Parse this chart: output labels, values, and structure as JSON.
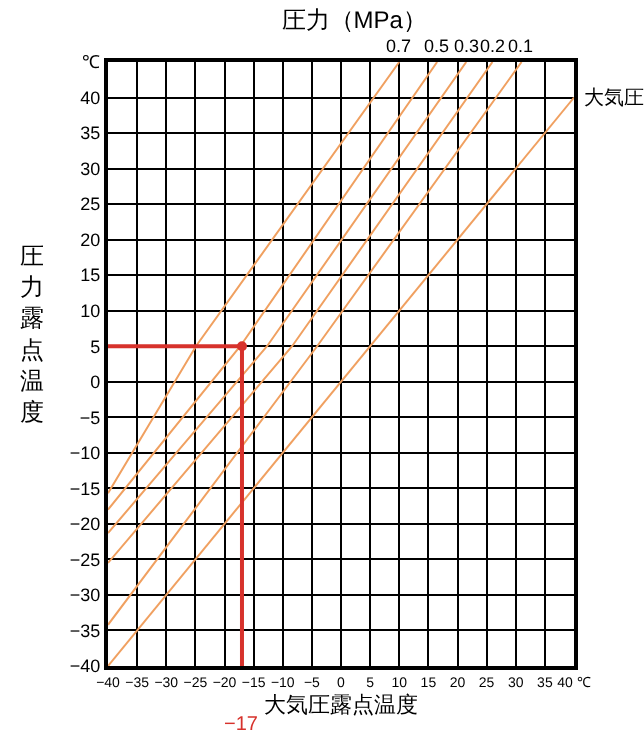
{
  "chart_data": {
    "type": "line",
    "title": "圧力（MPa）",
    "xlabel": "大気圧露点温度",
    "ylabel": "圧力露点温度",
    "series": [
      {
        "name": "0.7",
        "color": "#f0a060",
        "x": [
          -40,
          -24.9,
          10
        ],
        "values": [
          -15.7,
          5,
          45
        ]
      },
      {
        "name": "0.5",
        "color": "#f0a060",
        "x": [
          -40,
          -17.3,
          16.5
        ],
        "values": [
          -18,
          5,
          45
        ]
      },
      {
        "name": "0.3",
        "color": "#f0a060",
        "x": [
          -40,
          -12.7,
          21.5
        ],
        "values": [
          -21.3,
          5,
          45
        ]
      },
      {
        "name": "0.2",
        "color": "#f0a060",
        "x": [
          -40,
          -8.4,
          26
        ],
        "values": [
          -25.5,
          5,
          45
        ]
      },
      {
        "name": "0.1",
        "color": "#f0a060",
        "x": [
          -40,
          -4.1,
          31
        ],
        "values": [
          -34.2,
          5,
          45
        ]
      },
      {
        "name": "大気圧",
        "color": "#f0a060",
        "x": [
          -40,
          40
        ],
        "values": [
          -40,
          40
        ]
      },
      {
        "color": "#d7322c",
        "x": [
          -40,
          -17
        ],
        "values": [
          5,
          5
        ]
      },
      {
        "color": "#d7322c",
        "x": [
          -17,
          -17
        ],
        "values": [
          5,
          -40
        ]
      },
      {
        "type": "scatter",
        "marker": "circle",
        "color": "#d7322c",
        "x": [
          -17
        ],
        "values": [
          5
        ]
      }
    ],
    "annotations": [
      {
        "text": "−17",
        "x": -17,
        "y": -40
      }
    ],
    "xlim": [
      -40,
      40
    ],
    "ylim": [
      -40,
      45
    ],
    "xticks": [
      {
        "value": -40,
        "label": "−40"
      },
      {
        "value": -35,
        "label": "−35"
      },
      {
        "value": -30,
        "label": "−30"
      },
      {
        "value": -25,
        "label": "−25"
      },
      {
        "value": -20,
        "label": "−20"
      },
      {
        "value": -15,
        "label": "−15"
      },
      {
        "value": -10,
        "label": "−10"
      },
      {
        "value": -5,
        "label": "−5"
      },
      0,
      5,
      10,
      15,
      20,
      25,
      30,
      35,
      {
        "value": 40,
        "label": "40 ℃"
      }
    ],
    "yticks": [
      {
        "value": -40,
        "label": "−40"
      },
      {
        "value": -35,
        "label": "−35"
      },
      {
        "value": -30,
        "label": "−30"
      },
      {
        "value": -25,
        "label": "−25"
      },
      {
        "value": -20,
        "label": "−20"
      },
      {
        "value": -15,
        "label": "−15"
      },
      {
        "value": -10,
        "label": "−10"
      },
      {
        "value": -5,
        "label": "−5"
      },
      0,
      5,
      10,
      15,
      20,
      25,
      30,
      35,
      40,
      {
        "value": 45,
        "label": "℃"
      }
    ],
    "grid": true,
    "legend": false,
    "marker": "none",
    "line_style": "solid"
  }
}
